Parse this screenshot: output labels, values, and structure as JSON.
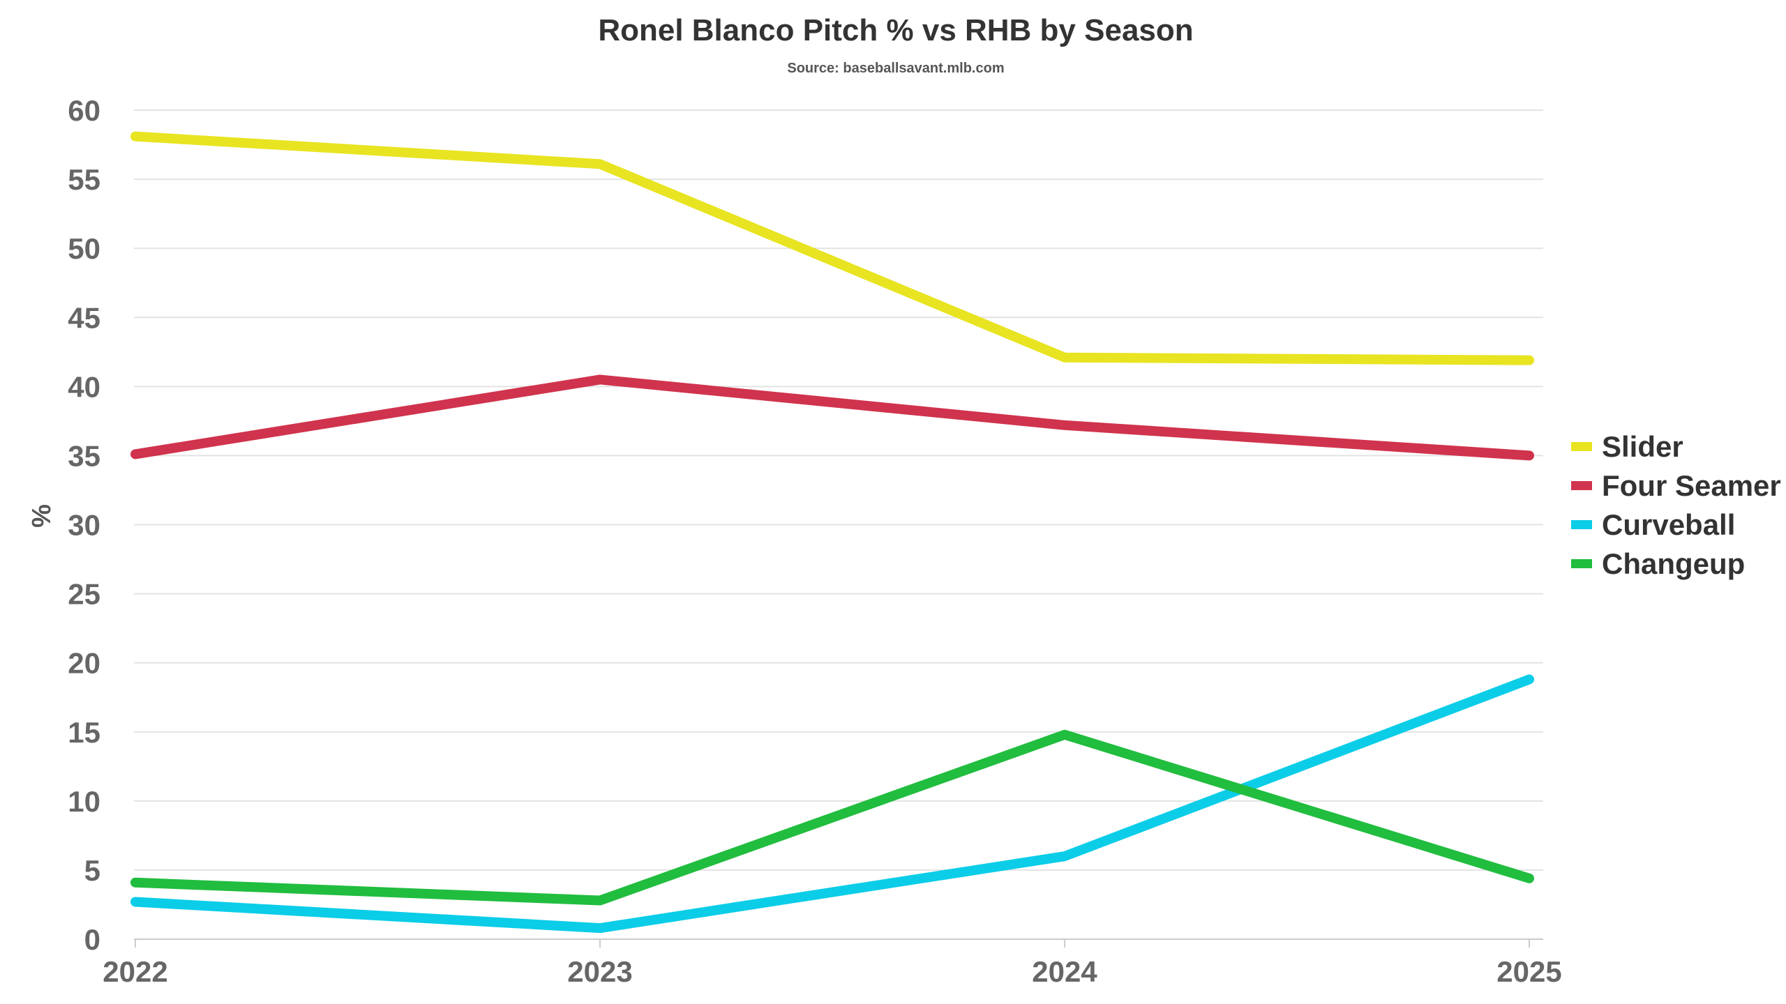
{
  "chart_data": {
    "type": "line",
    "title": "Ronel Blanco Pitch % vs RHB by Season",
    "subtitle": "Source: baseballsavant.mlb.com",
    "xlabel": "",
    "ylabel": "%",
    "categories": [
      "2022",
      "2023",
      "2024",
      "2025"
    ],
    "ylim": [
      0,
      60
    ],
    "yticks": [
      0,
      5,
      10,
      15,
      20,
      25,
      30,
      35,
      40,
      45,
      50,
      55,
      60
    ],
    "grid": true,
    "legend_position": "right",
    "series": [
      {
        "name": "Slider",
        "color": "#e8e421",
        "values": [
          58.1,
          56.1,
          42.1,
          41.9
        ]
      },
      {
        "name": "Four Seamer",
        "color": "#d0334d",
        "values": [
          35.1,
          40.5,
          37.2,
          35.0
        ]
      },
      {
        "name": "Curveball",
        "color": "#0bcde8",
        "values": [
          2.7,
          0.8,
          6.0,
          18.8
        ]
      },
      {
        "name": "Changeup",
        "color": "#21bd3f",
        "values": [
          4.1,
          2.8,
          14.8,
          4.4
        ]
      }
    ]
  }
}
